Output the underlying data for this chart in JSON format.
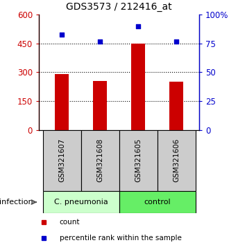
{
  "title": "GDS3573 / 212416_at",
  "samples": [
    "GSM321607",
    "GSM321608",
    "GSM321605",
    "GSM321606"
  ],
  "counts": [
    290,
    253,
    450,
    252
  ],
  "percentiles": [
    83,
    77,
    90,
    77
  ],
  "ylim_left": [
    0,
    600
  ],
  "ylim_right": [
    0,
    100
  ],
  "yticks_left": [
    0,
    150,
    300,
    450,
    600
  ],
  "yticks_right": [
    0,
    25,
    50,
    75,
    100
  ],
  "ytick_labels_right": [
    "0",
    "25",
    "50",
    "75",
    "100%"
  ],
  "bar_color": "#cc0000",
  "scatter_color": "#0000cc",
  "grid_values": [
    150,
    300,
    450
  ],
  "sample_box_color": "#cccccc",
  "group1_color": "#ccffcc",
  "group2_color": "#66ee66",
  "legend_items": [
    {
      "color": "#cc0000",
      "marker": "s",
      "label": "count"
    },
    {
      "color": "#0000cc",
      "marker": "s",
      "label": "percentile rank within the sample"
    }
  ],
  "bar_width": 0.35,
  "x_positions": [
    0,
    1,
    2,
    3
  ],
  "infection_label": "infection"
}
